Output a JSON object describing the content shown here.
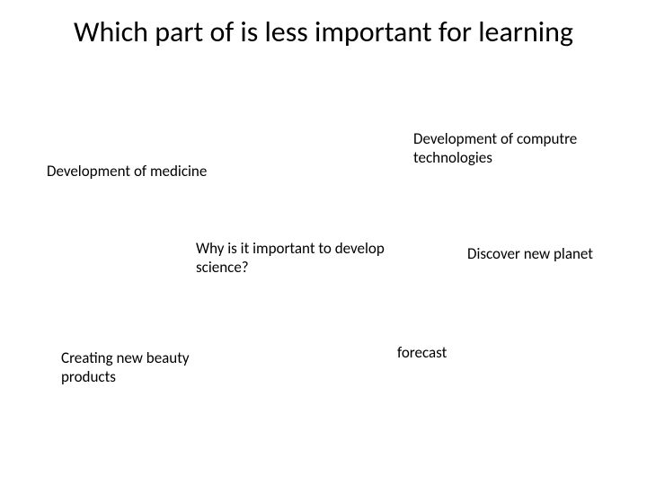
{
  "slide": {
    "title": "Which part of is less important for learning",
    "background_color": "#ffffff",
    "text_color": "#000000",
    "title_fontsize": 32,
    "body_fontsize": 17,
    "blocks": {
      "medicine": "Development of medicine",
      "computer": "Development of computre technologies",
      "science": "Why is it important to develop science?",
      "planet": "Discover new planet",
      "beauty": "Creating new beauty products",
      "forecast": "forecast"
    }
  }
}
